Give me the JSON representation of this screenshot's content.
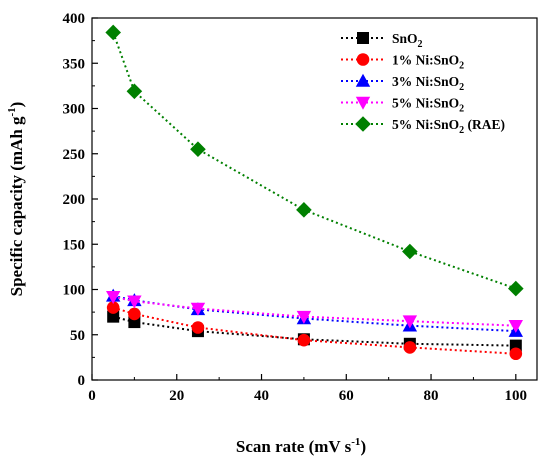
{
  "chart_data": {
    "type": "line",
    "xlabel": {
      "main": "Scan rate (mV s",
      "sup": "-1",
      "tail": ")"
    },
    "ylabel": {
      "main": "Specific capacity (mAh g",
      "sup": "-1",
      "tail": ")"
    },
    "xlim": [
      0,
      105
    ],
    "ylim": [
      0,
      400
    ],
    "xticks": [
      0,
      20,
      40,
      60,
      80,
      100
    ],
    "yticks": [
      0,
      50,
      100,
      150,
      200,
      250,
      300,
      350,
      400
    ],
    "grid": false,
    "legend_position": "top-right",
    "x": [
      5,
      10,
      25,
      50,
      75,
      100
    ],
    "series": [
      {
        "name": "SnO2",
        "label": {
          "pre": "SnO",
          "sub": "2",
          "post": ""
        },
        "color": "#000000",
        "marker": "square",
        "values": [
          70,
          64,
          54,
          45,
          40,
          38
        ]
      },
      {
        "name": "1% Ni:SnO2",
        "label": {
          "pre": "1% Ni:SnO",
          "sub": "2",
          "post": ""
        },
        "color": "#ff0000",
        "marker": "circle",
        "values": [
          80,
          73,
          58,
          44,
          36,
          29
        ]
      },
      {
        "name": "3% Ni:SnO2",
        "label": {
          "pre": "3% Ni:SnO",
          "sub": "2",
          "post": ""
        },
        "color": "#0000ff",
        "marker": "triangle-up",
        "values": [
          93,
          88,
          78,
          68,
          60,
          54
        ]
      },
      {
        "name": "5% Ni:SnO2",
        "label": {
          "pre": "5% Ni:SnO",
          "sub": "2",
          "post": ""
        },
        "color": "#ff00ff",
        "marker": "triangle-down",
        "values": [
          92,
          87,
          79,
          70,
          65,
          60
        ]
      },
      {
        "name": "5% Ni:SnO2 (RAE)",
        "label": {
          "pre": "5% Ni:SnO",
          "sub": "2",
          "post": " (RAE)"
        },
        "color": "#008000",
        "marker": "diamond",
        "values": [
          384,
          319,
          255,
          188,
          142,
          101
        ]
      }
    ]
  }
}
